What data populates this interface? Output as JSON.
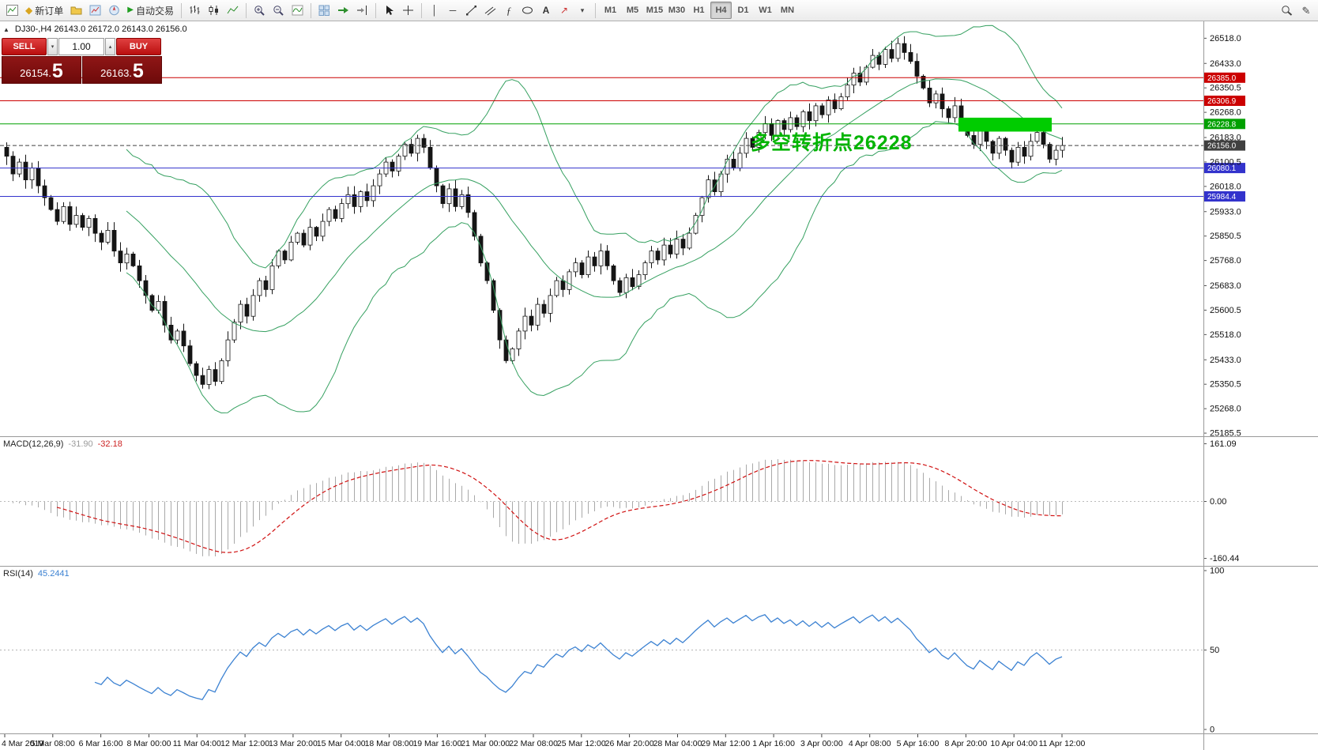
{
  "icon_glyphs": {
    "panel_toggle": "▲",
    "volume_down": "▾",
    "volume_up": "▴",
    "order": "◆",
    "autotrading_play": "▶",
    "vline": "│",
    "hline": "─",
    "fibonacci": "ƒ",
    "text_tool": "A",
    "arrows_tool": "↗",
    "chevron_down": "▾",
    "pencil": "✎"
  },
  "toolbar": {
    "groups": [
      {
        "name": "standard",
        "items": [
          {
            "name": "new-chart-button",
            "icon": "new-chart"
          },
          {
            "name": "new-order-button",
            "icon": "order",
            "label": "新订单"
          },
          {
            "name": "profiles-button",
            "icon": "profiles"
          },
          {
            "name": "market-watch-button",
            "icon": "market-watch"
          },
          {
            "name": "navigator-button",
            "icon": "navigator"
          },
          {
            "name": "autotrading-button",
            "icon": "autotrading_play",
            "label": "自动交易"
          }
        ]
      },
      {
        "name": "chart-type",
        "items": [
          {
            "name": "bar-chart-button",
            "icon": "bars"
          },
          {
            "name": "candlestick-chart-button",
            "icon": "candles"
          },
          {
            "name": "line-chart-button",
            "icon": "line"
          }
        ]
      },
      {
        "name": "zoom",
        "items": [
          {
            "name": "zoom-in-button",
            "icon": "zoom-in"
          },
          {
            "name": "zoom-out-button",
            "icon": "zoom-out"
          },
          {
            "name": "indicators-button",
            "icon": "indicators"
          }
        ]
      },
      {
        "name": "windows",
        "items": [
          {
            "name": "tile-windows-button",
            "icon": "tile"
          },
          {
            "name": "auto-scroll-button",
            "icon": "auto-scroll"
          },
          {
            "name": "chart-shift-button",
            "icon": "chart-shift"
          }
        ]
      },
      {
        "name": "cursor",
        "items": [
          {
            "name": "cursor-button",
            "icon": "cursor"
          },
          {
            "name": "crosshair-button",
            "icon": "crosshair"
          }
        ]
      },
      {
        "name": "objects",
        "items": [
          {
            "name": "vertical-line-button",
            "icon": "vline"
          },
          {
            "name": "horizontal-line-button",
            "icon": "hline"
          },
          {
            "name": "trendline-button",
            "icon": "trendline"
          },
          {
            "name": "equidistant-channel-button",
            "icon": "channel"
          },
          {
            "name": "fibonacci-button",
            "icon": "fibonacci"
          },
          {
            "name": "shapes-button",
            "icon": "shapes"
          },
          {
            "name": "text-button",
            "icon": "text_tool"
          },
          {
            "name": "arrows-button",
            "icon": "arrows_tool"
          },
          {
            "name": "objects-list-button",
            "icon": "chevron_down"
          }
        ]
      },
      {
        "name": "timeframes",
        "items": [
          {
            "name": "timeframe-m1-button",
            "label": "M1"
          },
          {
            "name": "timeframe-m5-button",
            "label": "M5"
          },
          {
            "name": "timeframe-m15-button",
            "label": "M15"
          },
          {
            "name": "timeframe-m30-button",
            "label": "M30"
          },
          {
            "name": "timeframe-h1-button",
            "label": "H1"
          },
          {
            "name": "timeframe-h4-button",
            "label": "H4"
          },
          {
            "name": "timeframe-d1-button",
            "label": "D1"
          },
          {
            "name": "timeframe-w1-button",
            "label": "W1"
          },
          {
            "name": "timeframe-mn-button",
            "label": "MN"
          }
        ]
      }
    ],
    "right_items": [
      {
        "name": "search-button",
        "icon": "search"
      },
      {
        "name": "quick-edit-button",
        "icon": "pencil"
      }
    ],
    "active_timeframe": "H4"
  },
  "chart": {
    "symbol_ohlc": "DJ30-,H4  26143.0 26172.0 26143.0 26156.0"
  },
  "trade_panel": {
    "sell_label": "SELL",
    "buy_label": "BUY",
    "volume": "1.00",
    "sell_price_prefix": "26154.",
    "sell_price_big": "5",
    "buy_price_prefix": "26163.",
    "buy_price_big": "5"
  },
  "chart_data": {
    "type": "candlestick",
    "symbol": "DJ30-",
    "timeframe": "H4",
    "ohlc_line": {
      "open": "26143.0",
      "high": "26172.0",
      "low": "26143.0",
      "close": "26156.0"
    },
    "first_open": 26150,
    "closes": [
      26120,
      26060,
      26100,
      26040,
      26080,
      26020,
      25980,
      25940,
      25900,
      25950,
      25890,
      25920,
      25880,
      25910,
      25860,
      25830,
      25870,
      25800,
      25760,
      25790,
      25750,
      25700,
      25650,
      25600,
      25630,
      25550,
      25500,
      25530,
      25480,
      25420,
      25380,
      25350,
      25400,
      25360,
      25430,
      25500,
      25560,
      25620,
      25580,
      25650,
      25700,
      25670,
      25750,
      25800,
      25770,
      25830,
      25860,
      25820,
      25880,
      25850,
      25900,
      25940,
      25910,
      25960,
      25990,
      25950,
      26000,
      25970,
      26020,
      26060,
      26100,
      26070,
      26120,
      26160,
      26130,
      26180,
      26150,
      26080,
      26020,
      25960,
      26010,
      25950,
      25990,
      25930,
      25850,
      25760,
      25700,
      25600,
      25500,
      25430,
      25470,
      25530,
      25580,
      25550,
      25620,
      25590,
      25650,
      25700,
      25670,
      25730,
      25760,
      25720,
      25780,
      25750,
      25800,
      25750,
      25700,
      25660,
      25710,
      25680,
      25720,
      25760,
      25800,
      25770,
      25820,
      25790,
      25840,
      25810,
      25860,
      25920,
      25980,
      26040,
      26000,
      26060,
      26110,
      26080,
      26130,
      26180,
      26150,
      26200,
      26230,
      26190,
      26240,
      26210,
      26250,
      26220,
      26270,
      26240,
      26290,
      26260,
      26310,
      26280,
      26320,
      26360,
      26400,
      26370,
      26420,
      26460,
      26430,
      26480,
      26450,
      26500,
      26470,
      26440,
      26390,
      26350,
      26300,
      26330,
      26280,
      26250,
      26290,
      26240,
      26190,
      26160,
      26210,
      26170,
      26130,
      26180,
      26140,
      26100,
      26150,
      26120,
      26170,
      26200,
      26160,
      26110,
      26140,
      26156
    ],
    "price_ticks": [
      "26518.0",
      "26433.0",
      "26350.5",
      "26268.0",
      "26183.0",
      "26100.5",
      "26018.0",
      "25933.0",
      "25850.5",
      "25768.0",
      "25683.0",
      "25600.5",
      "25518.0",
      "25433.0",
      "25350.5",
      "25268.0",
      "25185.5"
    ],
    "levels": [
      {
        "price": 26385.0,
        "label": "26385.0",
        "color": "#cc0000",
        "style": "solid"
      },
      {
        "price": 26306.9,
        "label": "26306.9",
        "color": "#cc0000",
        "style": "solid"
      },
      {
        "price": 26228.8,
        "label": "26228.8",
        "color": "#00a000",
        "style": "solid"
      },
      {
        "price": 26156.0,
        "label": "26156.0",
        "color": "#404040",
        "style": "dashed"
      },
      {
        "price": 26080.1,
        "label": "26080.1",
        "color": "#3333cc",
        "style": "solid"
      },
      {
        "price": 25984.4,
        "label": "25984.4",
        "color": "#3333cc",
        "style": "solid"
      }
    ],
    "time_labels": [
      "4 Mar 2019",
      "5 Mar 08:00",
      "6 Mar 16:00",
      "8 Mar 00:00",
      "11 Mar 04:00",
      "12 Mar 12:00",
      "13 Mar 20:00",
      "15 Mar 04:00",
      "18 Mar 08:00",
      "19 Mar 16:00",
      "21 Mar 00:00",
      "22 Mar 08:00",
      "25 Mar 12:00",
      "26 Mar 20:00",
      "28 Mar 04:00",
      "29 Mar 12:00",
      "1 Apr 16:00",
      "3 Apr 00:00",
      "4 Apr 08:00",
      "5 Apr 16:00",
      "8 Apr 20:00",
      "10 Apr 04:00",
      "11 Apr 12:00"
    ],
    "bollinger": {
      "period": 20,
      "deviation": 2,
      "color": "#35a060"
    },
    "annotation": {
      "text": "多空转折点26228",
      "color": "#00b400",
      "rect": {
        "from_candle": 151,
        "to_candle": 165,
        "price_top": 26250,
        "price_bottom": 26203,
        "color": "#00cc00"
      }
    },
    "macd": {
      "label": "MACD(12,26,9)",
      "value_main": "-31.90",
      "value_signal": "-32.18",
      "axis_labels": [
        "161.09",
        "0.00",
        "-160.44"
      ],
      "histogram_color": "#a9a9a9",
      "signal_color": "#d01010"
    },
    "rsi": {
      "label": "RSI(14)",
      "value": "45.2441",
      "axis_labels": [
        "100",
        "50",
        "0"
      ],
      "line_color": "#3c82d2",
      "mid_level": 50
    }
  }
}
